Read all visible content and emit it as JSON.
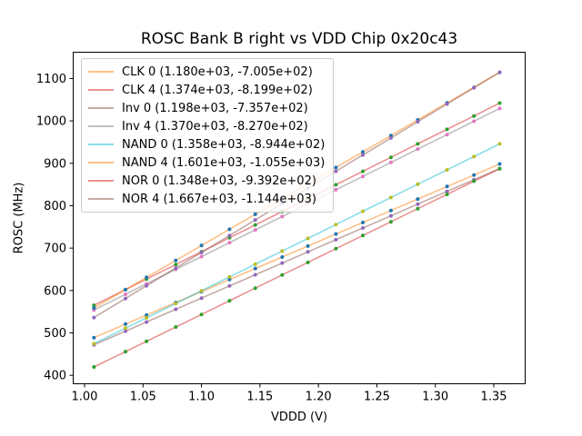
{
  "chart_data": {
    "type": "line+scatter",
    "title": "ROSC Bank B right vs VDD Chip 0x20c43",
    "xlabel": "VDDD (V)",
    "ylabel": "ROSC (MHz)",
    "xlim": [
      0.9899,
      1.3772
    ],
    "ylim": [
      379,
      1163
    ],
    "xticks": [
      1.0,
      1.05,
      1.1,
      1.15,
      1.2,
      1.25,
      1.3,
      1.35
    ],
    "xtick_labels": [
      "1.00",
      "1.05",
      "1.10",
      "1.15",
      "1.20",
      "1.25",
      "1.30",
      "1.35"
    ],
    "yticks": [
      400,
      500,
      600,
      700,
      800,
      900,
      1000,
      1100
    ],
    "ytick_labels": [
      "400",
      "500",
      "600",
      "700",
      "800",
      "900",
      "1000",
      "1100"
    ],
    "grid": false,
    "legend_position": "upper left",
    "x": [
      1.008,
      1.035,
      1.053,
      1.078,
      1.1,
      1.124,
      1.146,
      1.169,
      1.191,
      1.215,
      1.238,
      1.262,
      1.285,
      1.31,
      1.333,
      1.355
    ],
    "series": [
      {
        "name": "CLK 0",
        "label": "CLK 0 (1.180e+03, -7.005e+02)",
        "slope": 1180.0,
        "intercept": -700.5,
        "line_color": "#ff7f0e",
        "line_alpha": 0.5,
        "marker_color": "#1f77b4",
        "y": [
          488.9,
          520.8,
          542.0,
          571.5,
          597.5,
          625.8,
          651.8,
          678.9,
          704.9,
          733.2,
          760.3,
          788.7,
          815.8,
          845.3,
          872.4,
          898.4
        ]
      },
      {
        "name": "CLK 4",
        "label": "CLK 4 (1.374e+03, -8.199e+02)",
        "slope": 1374.0,
        "intercept": -819.9,
        "line_color": "#d62728",
        "line_alpha": 0.5,
        "marker_color": "#2ca02c",
        "y": [
          565.1,
          602.2,
          626.9,
          661.3,
          691.5,
          724.5,
          754.7,
          786.3,
          816.5,
          849.5,
          881.1,
          914.1,
          945.7,
          980.0,
          1011.6,
          1041.9
        ]
      },
      {
        "name": "Inv 0",
        "label": "Inv 0 (1.198e+03, -7.357e+02)",
        "slope": 1198.0,
        "intercept": -735.7,
        "line_color": "#8c564b",
        "line_alpha": 0.5,
        "marker_color": "#9467bd",
        "y": [
          471.9,
          504.2,
          525.8,
          555.7,
          582.1,
          610.8,
          637.2,
          664.8,
          691.1,
          719.9,
          747.4,
          776.2,
          803.7,
          833.7,
          861.2,
          887.6
        ]
      },
      {
        "name": "Inv 4",
        "label": "Inv 4 (1.370e+03, -8.270e+02)",
        "slope": 1370.0,
        "intercept": -827.0,
        "line_color": "#7f7f7f",
        "line_alpha": 0.5,
        "marker_color": "#e377c2",
        "y": [
          554.0,
          591.0,
          615.6,
          649.9,
          680.0,
          712.9,
          743.0,
          774.5,
          804.7,
          837.6,
          869.1,
          902.0,
          933.5,
          967.7,
          999.2,
          1029.4
        ]
      },
      {
        "name": "NAND 0",
        "label": "NAND 0 (1.358e+03, -8.944e+02)",
        "slope": 1358.0,
        "intercept": -894.4,
        "line_color": "#17becf",
        "line_alpha": 0.5,
        "marker_color": "#bcbd22",
        "y": [
          474.5,
          511.1,
          535.6,
          569.5,
          599.4,
          632.0,
          661.9,
          693.1,
          722.9,
          755.5,
          786.8,
          819.4,
          850.6,
          884.6,
          915.8,
          945.7
        ]
      },
      {
        "name": "NAND 4",
        "label": "NAND 4 (1.601e+03, -1.055e+03)",
        "slope": 1601.0,
        "intercept": -1055.0,
        "line_color": "#ff7f0e",
        "line_alpha": 0.5,
        "marker_color": "#1f77b4",
        "y": [
          558.8,
          602.0,
          630.9,
          670.9,
          706.1,
          744.5,
          779.7,
          816.6,
          851.8,
          890.2,
          927.0,
          965.5,
          1002.3,
          1042.3,
          1079.1,
          1114.4
        ]
      },
      {
        "name": "NOR 0",
        "label": "NOR 0 (1.348e+03, -9.392e+02)",
        "slope": 1348.0,
        "intercept": -939.2,
        "line_color": "#d62728",
        "line_alpha": 0.5,
        "marker_color": "#2ca02c",
        "y": [
          419.6,
          456.0,
          480.2,
          513.9,
          543.6,
          575.9,
          605.6,
          636.6,
          666.3,
          698.6,
          729.6,
          762.0,
          793.0,
          826.7,
          857.7,
          887.3
        ]
      },
      {
        "name": "NOR 4",
        "label": "NOR 4 (1.667e+03, -1.144e+03)",
        "slope": 1667.0,
        "intercept": -1144.0,
        "line_color": "#8c564b",
        "line_alpha": 0.5,
        "marker_color": "#9467bd",
        "y": [
          536.3,
          581.3,
          611.3,
          653.0,
          689.7,
          729.7,
          766.4,
          804.7,
          841.4,
          881.4,
          919.7,
          959.8,
          998.1,
          1039.8,
          1078.1,
          1114.8
        ]
      }
    ],
    "axis_color": "#000000"
  }
}
